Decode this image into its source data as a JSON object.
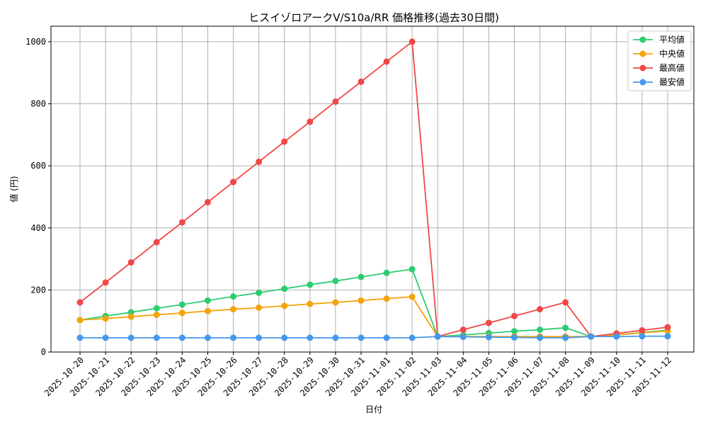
{
  "chart_data": {
    "type": "line",
    "title": "ヒスイゾロアークV/S10a/RR 価格推移(過去30日間)",
    "xlabel": "日付",
    "ylabel": "値 (円)",
    "ylim": [
      0,
      1050
    ],
    "yticks": [
      0,
      200,
      400,
      600,
      800,
      1000
    ],
    "grid": true,
    "legend_position": "top-right",
    "x": [
      "2025-10-20",
      "2025-10-21",
      "2025-10-22",
      "2025-10-23",
      "2025-10-24",
      "2025-10-25",
      "2025-10-26",
      "2025-10-27",
      "2025-10-28",
      "2025-10-29",
      "2025-10-30",
      "2025-10-31",
      "2025-11-01",
      "2025-11-02",
      "2025-11-03",
      "2025-11-04",
      "2025-11-05",
      "2025-11-06",
      "2025-11-07",
      "2025-11-08",
      "2025-11-09",
      "2025-11-10",
      "2025-11-11",
      "2025-11-12"
    ],
    "series": [
      {
        "name": "平均値",
        "color": "#2ecc71",
        "values": [
          103,
          116,
          128,
          141,
          153,
          166,
          179,
          191,
          204,
          217,
          229,
          242,
          255,
          267,
          50,
          55,
          61,
          67,
          72,
          78,
          50,
          55,
          63,
          70
        ]
      },
      {
        "name": "中央値",
        "color": "#f5a30a",
        "values": [
          103,
          108,
          114,
          120,
          126,
          132,
          138,
          143,
          149,
          155,
          160,
          166,
          172,
          178,
          50,
          50,
          50,
          50,
          50,
          50,
          50,
          55,
          62,
          68
        ]
      },
      {
        "name": "最高値",
        "color": "#f04848",
        "values": [
          160,
          224,
          289,
          354,
          418,
          483,
          548,
          613,
          678,
          742,
          807,
          871,
          936,
          1000,
          50,
          72,
          94,
          116,
          138,
          160,
          50,
          60,
          70,
          80
        ]
      },
      {
        "name": "最安値",
        "color": "#4499ee",
        "values": [
          46,
          46,
          46,
          46,
          46,
          46,
          46,
          46,
          46,
          46,
          46,
          46,
          46,
          46,
          50,
          49,
          48,
          47,
          46,
          46,
          50,
          50,
          51,
          51
        ]
      }
    ]
  }
}
